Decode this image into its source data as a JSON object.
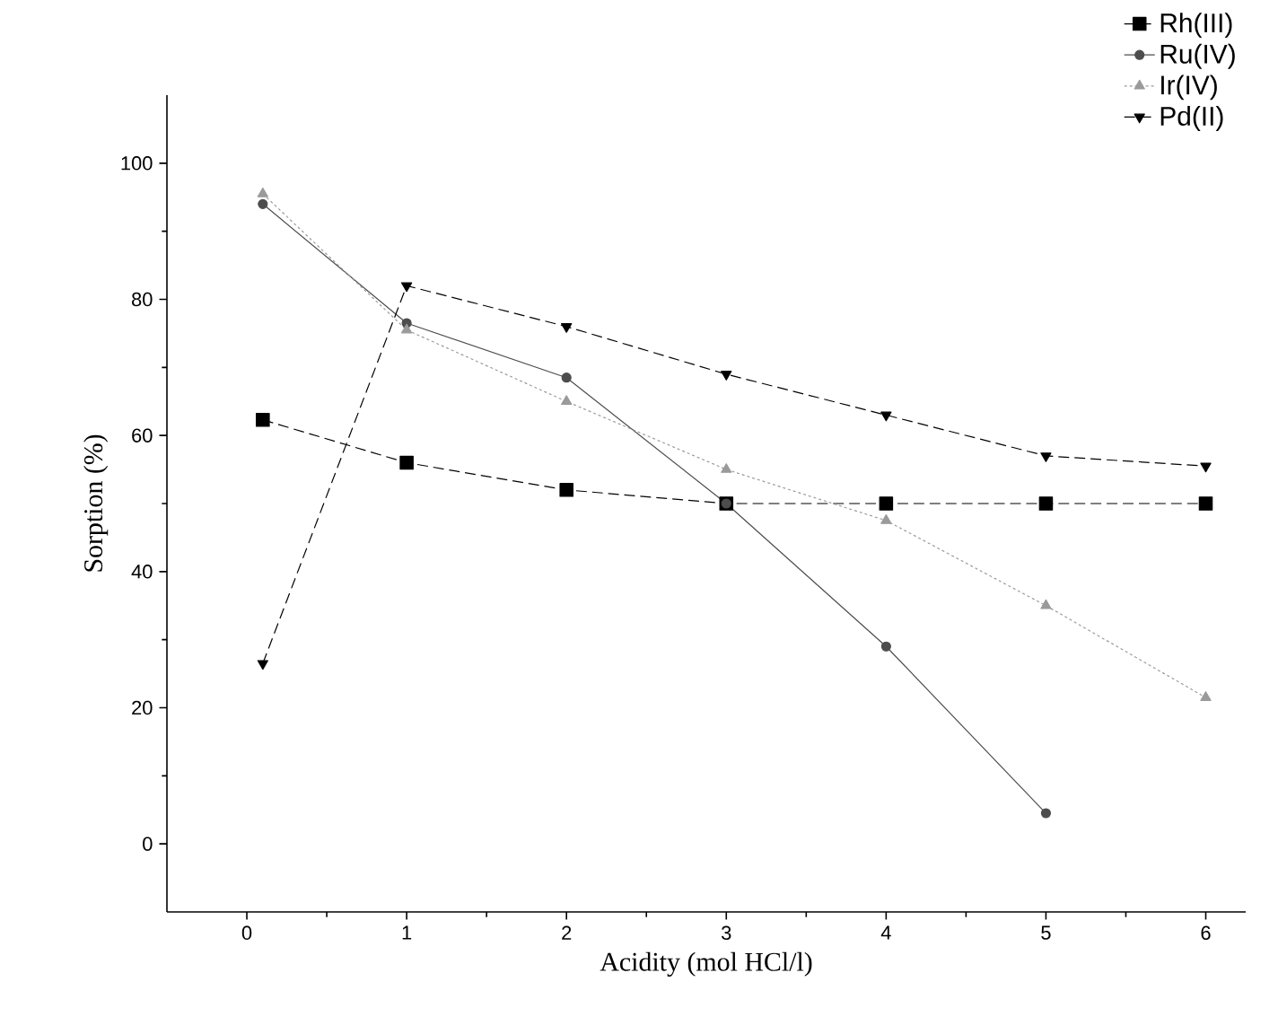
{
  "chart_data": {
    "type": "line",
    "xlabel": "Acidity (mol HCl/l)",
    "ylabel": "Sorption (%)",
    "xlim": [
      -0.5,
      6.25
    ],
    "ylim": [
      -10,
      110
    ],
    "xticks": [
      0,
      1,
      2,
      3,
      4,
      5,
      6
    ],
    "yticks": [
      0,
      20,
      40,
      60,
      80,
      100
    ],
    "grid": false,
    "legend": "top right",
    "series": [
      {
        "name": "Rh(III)",
        "color": "#000000",
        "marker": "square",
        "line_style": "dashed",
        "x": [
          0.1,
          1,
          2,
          3,
          4,
          5,
          6
        ],
        "values": [
          62.3,
          56,
          52,
          50,
          50,
          50,
          50
        ]
      },
      {
        "name": "Ru(IV)",
        "color": "#4d4d4d",
        "marker": "circle",
        "line_style": "solid",
        "x": [
          0.1,
          1,
          2,
          3,
          4,
          5
        ],
        "values": [
          94,
          76.5,
          68.5,
          50,
          29,
          4.5
        ]
      },
      {
        "name": "Ir(IV)",
        "color": "#9a9a9a",
        "marker": "triangle",
        "line_style": "dotted",
        "x": [
          0.1,
          1,
          2,
          3,
          4,
          5,
          6
        ],
        "values": [
          95.5,
          75.5,
          65,
          55,
          47.5,
          35,
          21.5
        ]
      },
      {
        "name": "Pd(II)",
        "color": "#000000",
        "marker": "triangle down",
        "line_style": "dashed",
        "x": [
          0.1,
          1,
          2,
          3,
          4,
          5,
          6
        ],
        "values": [
          26.5,
          82,
          76,
          69,
          63,
          57,
          55.5
        ]
      }
    ]
  }
}
